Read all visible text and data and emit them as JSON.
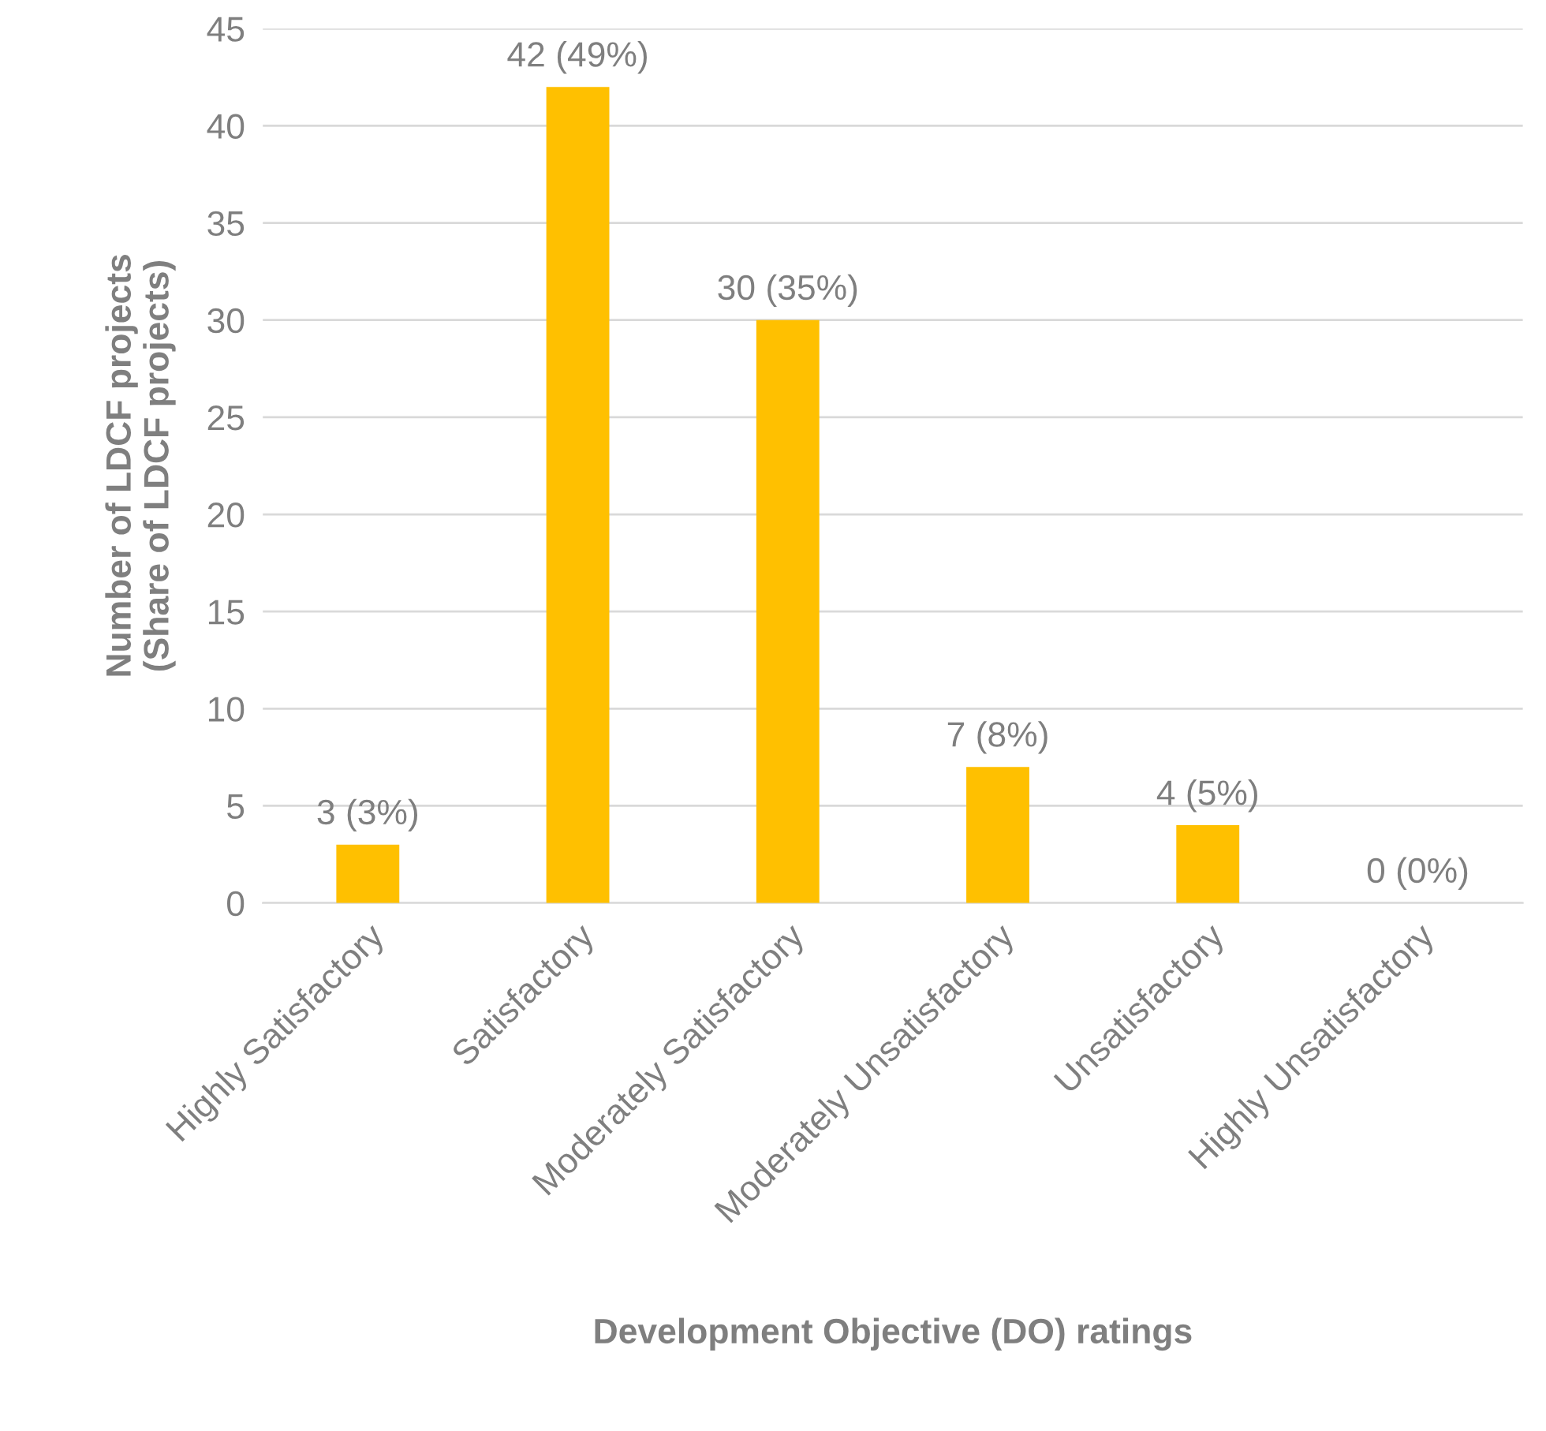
{
  "chart_data": {
    "type": "bar",
    "xlabel": "Development Objective (DO) ratings",
    "ylabel": "Number of LDCF projects\n(Share of LDCF projects)",
    "categories": [
      "Highly Satisfactory",
      "Satisfactory",
      "Moderately Satisfactory",
      "Moderately Unsatisfactory",
      "Unsatisfactory",
      "Highly Unsatisfactory"
    ],
    "values": [
      3,
      42,
      30,
      7,
      4,
      0
    ],
    "value_labels": [
      "3 (3%)",
      "42 (49%)",
      "30 (35%)",
      "7 (8%)",
      "4 (5%)",
      "0 (0%)"
    ],
    "color": "#ffc000",
    "ylim": [
      0,
      45
    ],
    "yticks": [
      0,
      5,
      10,
      15,
      20,
      25,
      30,
      35,
      40,
      45
    ],
    "grid": "y",
    "legend": false
  }
}
